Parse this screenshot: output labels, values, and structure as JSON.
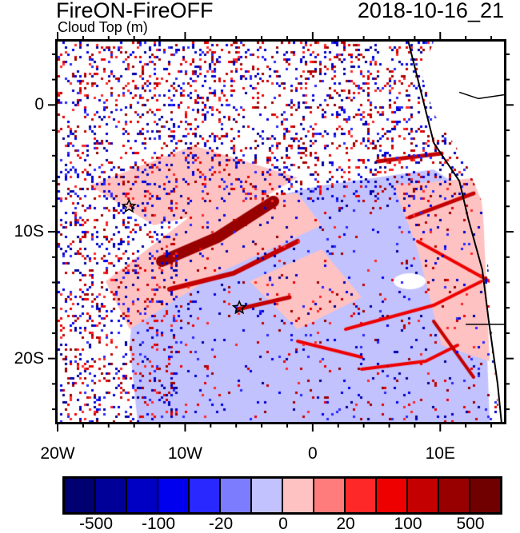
{
  "header": {
    "title": "FireON-FireOFF",
    "subtitle": "Cloud Top (m)",
    "date": "2018-10-16_21"
  },
  "map": {
    "lon_range": [
      -20,
      15
    ],
    "lat_range": [
      -25,
      5
    ],
    "x_ticks": [
      {
        "lon": -20,
        "label": "20W"
      },
      {
        "lon": -10,
        "label": "10W"
      },
      {
        "lon": 0,
        "label": "0"
      },
      {
        "lon": 10,
        "label": "10E"
      }
    ],
    "y_ticks": [
      {
        "lat": 0,
        "label": "0"
      },
      {
        "lat": -10,
        "label": "10S"
      },
      {
        "lat": -20,
        "label": "20S"
      }
    ],
    "markers": [
      {
        "name": "star",
        "lon": -14.4,
        "lat": -8.0
      },
      {
        "name": "star",
        "lon": -5.75,
        "lat": -16.0
      }
    ]
  },
  "colorbar": {
    "colors": [
      "#000070",
      "#000098",
      "#0000c4",
      "#0000ee",
      "#2828ff",
      "#7c7cff",
      "#c2c2ff",
      "#ffc2c2",
      "#ff7c7c",
      "#ff2828",
      "#ee0000",
      "#c40000",
      "#980000",
      "#700000"
    ],
    "labels": [
      {
        "boundary": 1,
        "text": "-500"
      },
      {
        "boundary": 3,
        "text": "-100"
      },
      {
        "boundary": 5,
        "text": "-20"
      },
      {
        "boundary": 7,
        "text": "0"
      },
      {
        "boundary": 9,
        "text": "20"
      },
      {
        "boundary": 11,
        "text": "100"
      },
      {
        "boundary": 13,
        "text": "500"
      }
    ]
  }
}
